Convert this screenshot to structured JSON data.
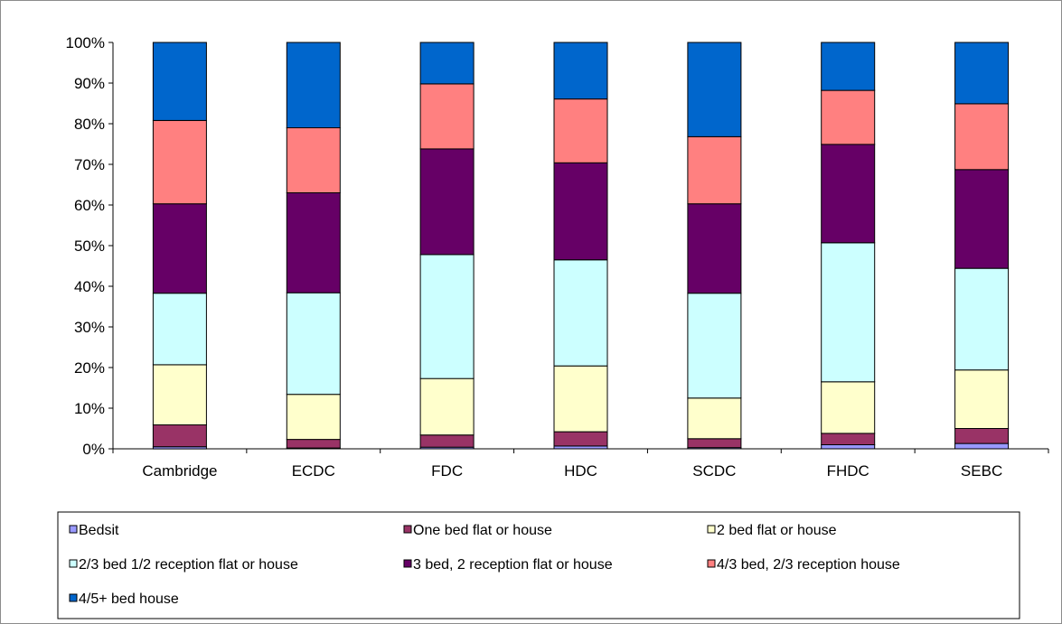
{
  "chart_data": {
    "type": "bar",
    "stacked": "percent",
    "categories": [
      "Cambridge",
      "ECDC",
      "FDC",
      "HDC",
      "SCDC",
      "FHDC",
      "SEBC"
    ],
    "series": [
      {
        "name": "Bedsit",
        "color": "#9999ff",
        "values": [
          0.5,
          0.2,
          0.4,
          0.7,
          0.3,
          1.0,
          1.3
        ]
      },
      {
        "name": "One bed flat or house",
        "color": "#993366",
        "values": [
          5.4,
          2.1,
          3.0,
          3.5,
          2.2,
          2.8,
          3.7
        ]
      },
      {
        "name": "2 bed flat or house",
        "color": "#ffffcc",
        "values": [
          14.8,
          11.1,
          13.9,
          16.2,
          10.0,
          12.7,
          14.4
        ]
      },
      {
        "name": "2/3 bed 1/2 reception flat or house",
        "color": "#ccffff",
        "values": [
          17.6,
          25.0,
          30.5,
          26.1,
          25.8,
          34.2,
          25.0
        ]
      },
      {
        "name": "3 bed, 2 reception flat or house",
        "color": "#660066",
        "values": [
          22.0,
          24.6,
          26.0,
          23.9,
          22.0,
          24.2,
          24.3
        ]
      },
      {
        "name": "4/3 bed, 2/3 reception house",
        "color": "#ff8080",
        "values": [
          20.5,
          16.0,
          16.0,
          15.7,
          16.5,
          13.3,
          16.2
        ]
      },
      {
        "name": "4/5+ bed house",
        "color": "#0066cc",
        "values": [
          19.2,
          21.0,
          10.2,
          13.9,
          23.2,
          11.8,
          15.1
        ]
      }
    ],
    "y_ticks": [
      "0%",
      "10%",
      "20%",
      "30%",
      "40%",
      "50%",
      "60%",
      "70%",
      "80%",
      "90%",
      "100%"
    ],
    "ylim": [
      0,
      100
    ],
    "grid": false,
    "legend_position": "bottom",
    "title": "",
    "xlabel": "",
    "ylabel": ""
  }
}
